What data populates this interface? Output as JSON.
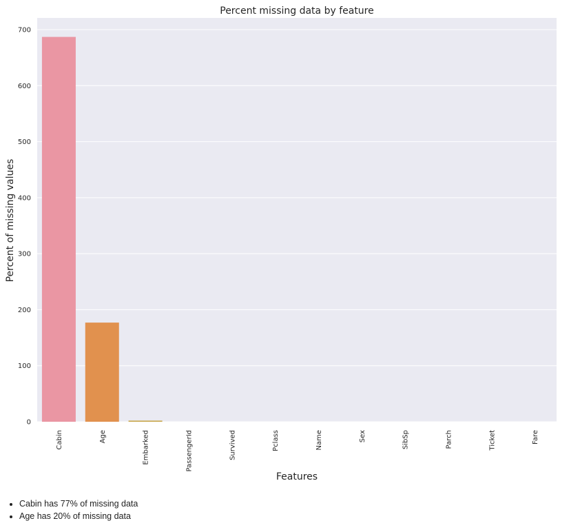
{
  "chart_data": {
    "type": "bar",
    "title": "Percent missing data by feature",
    "xlabel": "Features",
    "ylabel": "Percent of missing values",
    "categories": [
      "Cabin",
      "Age",
      "Embarked",
      "PassengerId",
      "Survived",
      "Pclass",
      "Name",
      "Sex",
      "SibSp",
      "Parch",
      "Ticket",
      "Fare"
    ],
    "values": [
      687,
      177,
      2,
      0,
      0,
      0,
      0,
      0,
      0,
      0,
      0,
      0
    ],
    "colors": [
      "#ea96a3",
      "#e1914e",
      "#c8a64b",
      "#a9b74d",
      "#6fb54d",
      "#51b48a",
      "#53b1a6",
      "#57aec3",
      "#5ca8dd",
      "#a0a0ee",
      "#d98aeb",
      "#ec87c2"
    ],
    "ylim": [
      0,
      720
    ],
    "yticks": [
      0,
      100,
      200,
      300,
      400,
      500,
      600,
      700
    ],
    "grid": true,
    "background": "#eaeaf2"
  },
  "notes": [
    "Cabin has 77% of missing data",
    "Age has 20% of missing data"
  ]
}
